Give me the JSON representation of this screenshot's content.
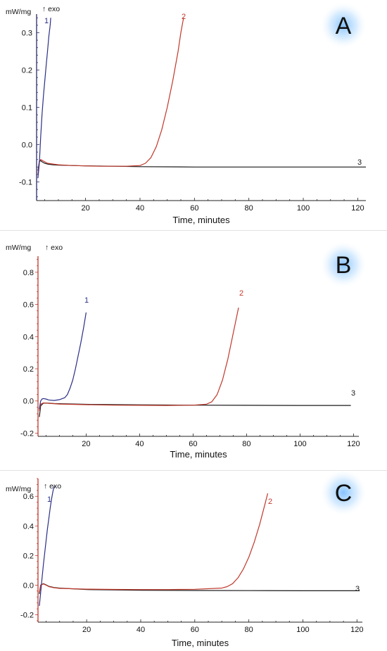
{
  "chart_data": [
    {
      "type": "line",
      "panel_label": "A",
      "xlabel": "Time, minutes",
      "ylabel": "mW/mg",
      "direction_label": "↑ exo",
      "xlim": [
        2,
        123
      ],
      "ylim": [
        -0.15,
        0.35
      ],
      "xticks": [
        20,
        40,
        60,
        80,
        100,
        120
      ],
      "yticks": [
        -0.1,
        0.0,
        0.1,
        0.2,
        0.3
      ],
      "ytick_labels": [
        "-0.1",
        "0.0",
        "0.1",
        "0.2",
        "0.3"
      ],
      "grid": false,
      "y_axis_color": "#2b2b6b",
      "series": [
        {
          "name": "1",
          "color": "#2b2f86",
          "x": [
            2.5,
            3,
            3.5,
            4,
            4.5,
            5,
            5.5,
            6,
            6.5,
            7,
            7.2
          ],
          "y": [
            -0.09,
            -0.05,
            0.02,
            0.08,
            0.13,
            0.17,
            0.21,
            0.25,
            0.29,
            0.32,
            0.34
          ]
        },
        {
          "name": "2",
          "color": "#c0392b",
          "x": [
            2.5,
            3,
            3.5,
            4,
            5,
            6,
            8,
            10,
            15,
            20,
            25,
            30,
            35,
            40,
            42,
            44,
            46,
            48,
            50,
            52,
            54,
            55,
            56
          ],
          "y": [
            -0.08,
            -0.045,
            -0.04,
            -0.042,
            -0.046,
            -0.05,
            -0.052,
            -0.054,
            -0.056,
            -0.057,
            -0.058,
            -0.058,
            -0.058,
            -0.056,
            -0.05,
            -0.035,
            -0.005,
            0.04,
            0.1,
            0.17,
            0.25,
            0.3,
            0.34
          ]
        },
        {
          "name": "3",
          "color": "#1a1a1a",
          "x": [
            2.5,
            3,
            3.5,
            4,
            5,
            6,
            8,
            10,
            15,
            20,
            30,
            40,
            60,
            80,
            100,
            123
          ],
          "y": [
            -0.07,
            -0.045,
            -0.043,
            -0.046,
            -0.05,
            -0.052,
            -0.054,
            -0.055,
            -0.056,
            -0.057,
            -0.058,
            -0.059,
            -0.06,
            -0.06,
            -0.06,
            -0.06
          ]
        }
      ]
    },
    {
      "type": "line",
      "panel_label": "B",
      "xlabel": "Time, minutes",
      "ylabel": "mW/mg",
      "direction_label": "↑ exo",
      "xlim": [
        2,
        122
      ],
      "ylim": [
        -0.22,
        0.9
      ],
      "xticks": [
        20,
        40,
        60,
        80,
        100,
        120
      ],
      "yticks": [
        -0.2,
        0.0,
        0.2,
        0.4,
        0.6,
        0.8
      ],
      "ytick_labels": [
        "-0.2",
        "0.0",
        "0.2",
        "0.4",
        "0.6",
        "0.8"
      ],
      "grid": false,
      "y_axis_color": "#c0392b",
      "series": [
        {
          "name": "1",
          "color": "#2b2f86",
          "x": [
            2.5,
            3,
            3.5,
            4,
            5,
            6,
            8,
            10,
            12,
            13,
            14,
            15,
            16,
            17,
            18,
            19,
            20
          ],
          "y": [
            -0.05,
            0.0,
            0.012,
            0.015,
            0.012,
            0.006,
            0.003,
            0.008,
            0.02,
            0.04,
            0.08,
            0.13,
            0.2,
            0.28,
            0.36,
            0.45,
            0.55
          ]
        },
        {
          "name": "2",
          "color": "#c0392b",
          "x": [
            2.5,
            3,
            4,
            5,
            6,
            8,
            10,
            20,
            30,
            40,
            50,
            60,
            65,
            67,
            69,
            71,
            73,
            75,
            77
          ],
          "y": [
            -0.06,
            -0.02,
            -0.012,
            -0.013,
            -0.015,
            -0.017,
            -0.019,
            -0.023,
            -0.026,
            -0.027,
            -0.028,
            -0.026,
            -0.02,
            -0.005,
            0.04,
            0.13,
            0.26,
            0.42,
            0.58
          ]
        },
        {
          "name": "3",
          "color": "#1a1a1a",
          "x": [
            2.5,
            3,
            4,
            5,
            6,
            8,
            10,
            20,
            40,
            60,
            80,
            100,
            119
          ],
          "y": [
            -0.1,
            -0.03,
            -0.014,
            -0.013,
            -0.014,
            -0.016,
            -0.017,
            -0.021,
            -0.024,
            -0.026,
            -0.027,
            -0.028,
            -0.028
          ]
        }
      ]
    },
    {
      "type": "line",
      "panel_label": "C",
      "xlabel": "Time, minutes",
      "ylabel": "mW/mg",
      "direction_label": "↑ exo",
      "xlim": [
        2,
        122
      ],
      "ylim": [
        -0.25,
        0.72
      ],
      "xticks": [
        20,
        40,
        60,
        80,
        100,
        120
      ],
      "yticks": [
        -0.2,
        0.0,
        0.2,
        0.4,
        0.6
      ],
      "ytick_labels": [
        "-0.2",
        "0.0",
        "0.2",
        "0.4",
        "0.6"
      ],
      "grid": false,
      "y_axis_color": "#c0392b",
      "series": [
        {
          "name": "1",
          "color": "#2b2f86",
          "x": [
            2.5,
            3,
            3.5,
            4,
            4.5,
            5,
            5.5,
            6,
            6.5,
            7,
            7.5,
            8
          ],
          "y": [
            -0.14,
            -0.05,
            0.05,
            0.14,
            0.22,
            0.3,
            0.38,
            0.45,
            0.52,
            0.58,
            0.63,
            0.67
          ]
        },
        {
          "name": "2",
          "color": "#c0392b",
          "x": [
            2.5,
            3,
            4,
            5,
            6,
            8,
            10,
            20,
            30,
            40,
            50,
            60,
            70,
            72,
            74,
            76,
            78,
            80,
            82,
            84,
            86,
            87
          ],
          "y": [
            -0.05,
            0.0,
            0.008,
            0.0,
            -0.01,
            -0.018,
            -0.022,
            -0.027,
            -0.029,
            -0.03,
            -0.03,
            -0.028,
            -0.02,
            -0.01,
            0.01,
            0.05,
            0.11,
            0.19,
            0.29,
            0.41,
            0.55,
            0.62
          ]
        },
        {
          "name": "3",
          "color": "#1a1a1a",
          "x": [
            2.5,
            3,
            4,
            5,
            6,
            8,
            10,
            20,
            40,
            60,
            80,
            100,
            121
          ],
          "y": [
            -0.06,
            0.0,
            0.01,
            0.002,
            -0.008,
            -0.016,
            -0.02,
            -0.03,
            -0.034,
            -0.036,
            -0.037,
            -0.038,
            -0.038
          ]
        }
      ]
    }
  ]
}
